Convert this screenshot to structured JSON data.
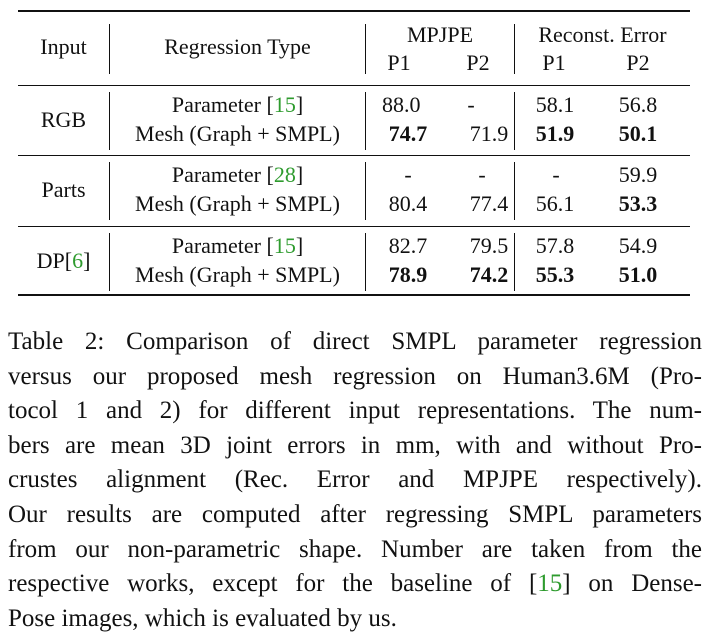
{
  "table": {
    "header": {
      "input": "Input",
      "regression_type": "Regression Type",
      "mpjpe": "MPJPE",
      "reconst_error": "Reconst. Error",
      "p1": "P1",
      "p2": "P2"
    },
    "groups": [
      {
        "input": "RGB",
        "input_cite": "",
        "rows": [
          {
            "type": "Parameter ",
            "cite": "15",
            "type_suffix": "",
            "mpjpe_p1": "88.0",
            "mpjpe_p2": "-",
            "rec_p1": "58.1",
            "rec_p2": "56.8"
          },
          {
            "type": "Mesh (Graph + SMPL)",
            "cite": "",
            "type_suffix": "",
            "mpjpe_p1": "74.7",
            "mpjpe_p2": "71.9",
            "rec_p1": "51.9",
            "rec_p2": "50.1"
          }
        ]
      },
      {
        "input": "Parts",
        "input_cite": "",
        "rows": [
          {
            "type": "Parameter ",
            "cite": "28",
            "mpjpe_p1": "-",
            "mpjpe_p2": "-",
            "rec_p1": "-",
            "rec_p2": "59.9"
          },
          {
            "type": "Mesh (Graph + SMPL)",
            "cite": "",
            "mpjpe_p1": "80.4",
            "mpjpe_p2": "77.4",
            "rec_p1": "56.1",
            "rec_p2": "53.3"
          }
        ]
      },
      {
        "input": "DP",
        "input_cite": "6",
        "rows": [
          {
            "type": "Parameter ",
            "cite": "15",
            "mpjpe_p1": "82.7",
            "mpjpe_p2": "79.5",
            "rec_p1": "57.8",
            "rec_p2": "54.9"
          },
          {
            "type": "Mesh (Graph + SMPL)",
            "cite": "",
            "mpjpe_p1": "78.9",
            "mpjpe_p2": "74.2",
            "rec_p1": "55.3",
            "rec_p2": "51.0"
          }
        ]
      }
    ]
  },
  "caption": {
    "lines": [
      "Table 2: Comparison of direct SMPL parameter regression",
      "versus our proposed mesh regression on Human3.6M (Pro-",
      "tocol 1 and 2) for different input representations. The num-",
      "bers are mean 3D joint errors in mm, with and without Pro-",
      "crustes alignment (Rec.  Error and MPJPE respectively).",
      "Our results are computed after regressing SMPL parameters",
      "from our non-parametric shape. Number are taken from the",
      "respective works, except for the baseline of ",
      "Pose images, which is evaluated by us."
    ],
    "line8_cite": "15",
    "line8_suffix": " on Dense-"
  },
  "colors": {
    "citation": "#2e9b2e",
    "text": "#111111"
  }
}
